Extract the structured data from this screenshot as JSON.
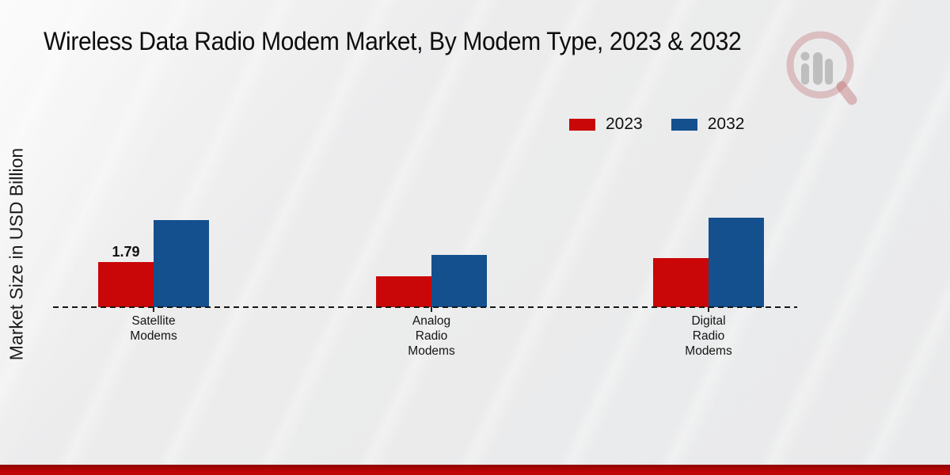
{
  "title": "Wireless Data Radio Modem Market, By Modem Type, 2023 & 2032",
  "ylabel": "Market Size in USD Billion",
  "legend": {
    "items": [
      {
        "label": "2023",
        "color": "#c90708"
      },
      {
        "label": "2032",
        "color": "#14508e"
      }
    ]
  },
  "chart_data": {
    "type": "bar",
    "title": "Wireless Data Radio Modem Market, By Modem Type, 2023 & 2032",
    "xlabel": "",
    "ylabel": "Market Size in USD Billion",
    "categories": [
      "Satellite Modems",
      "Analog Radio Modems",
      "Digital Radio Modems"
    ],
    "categories_display": [
      "Satellite\nModems",
      "Analog\nRadio\nModems",
      "Digital\nRadio\nModems"
    ],
    "series": [
      {
        "name": "2023",
        "color": "#c90708",
        "values": [
          1.79,
          1.22,
          1.95
        ]
      },
      {
        "name": "2032",
        "color": "#14508e",
        "values": [
          3.45,
          2.07,
          3.55
        ]
      }
    ],
    "value_labels": [
      {
        "series_index": 0,
        "category_index": 0,
        "text": "1.79"
      }
    ],
    "values_estimated_from_bar_heights": true,
    "grid": false,
    "y_axis_tick_labels": "none",
    "x_baseline_style": "dashed",
    "legend_position": "upper right"
  },
  "watermark": {
    "icon": "magnifier-bar-chart-logo"
  },
  "colors": {
    "series_2023": "#c90708",
    "series_2032": "#14508e",
    "footer_bar": "#c10506",
    "footer_bar_dark": "#8e0304",
    "background": "#ebecec",
    "text": "#111111"
  }
}
